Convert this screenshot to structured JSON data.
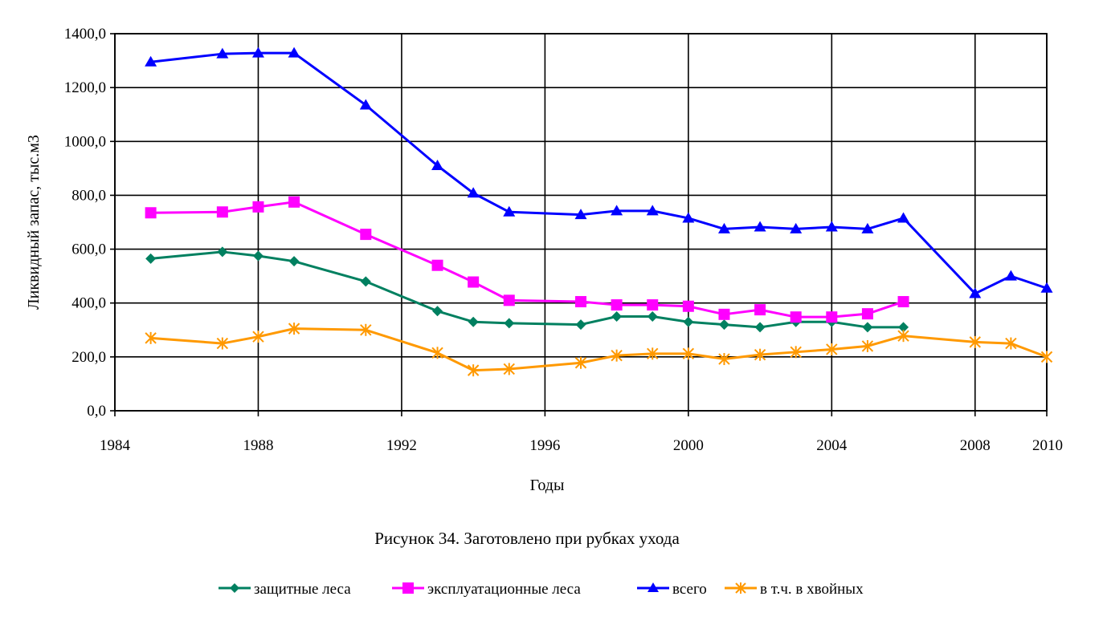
{
  "chart_data": {
    "type": "line",
    "xlabel": "Годы",
    "ylabel": "Ликвидный запас, тыс.м3",
    "caption": "Рисунок 34. Заготовлено при рубках ухода",
    "xlim": [
      1984,
      2010
    ],
    "ylim": [
      0,
      1400
    ],
    "x_ticks": [
      "1984",
      "1988",
      "1992",
      "1996",
      "2000",
      "2004",
      "2008",
      "2010"
    ],
    "y_ticks": [
      "0,0",
      "200,0",
      "400,0",
      "600,0",
      "800,0",
      "1000,0",
      "1200,0",
      "1400,0"
    ],
    "grid": true,
    "legend_position": "bottom",
    "series": [
      {
        "name": "защитные леса",
        "color": "#008060",
        "marker": "diamond",
        "x": [
          1985,
          1987,
          1988,
          1989,
          1991,
          1993,
          1994,
          1995,
          1997,
          1998,
          1999,
          2000,
          2001,
          2002,
          2003,
          2004,
          2005,
          2006
        ],
        "y": [
          565,
          590,
          575,
          555,
          480,
          370,
          330,
          325,
          320,
          350,
          350,
          330,
          320,
          310,
          330,
          330,
          310,
          310
        ]
      },
      {
        "name": "эксплуатационные леса",
        "color": "#ff00ff",
        "marker": "square",
        "x": [
          1985,
          1987,
          1988,
          1989,
          1991,
          1993,
          1994,
          1995,
          1997,
          1998,
          1999,
          2000,
          2001,
          2002,
          2003,
          2004,
          2005,
          2006
        ],
        "y": [
          735,
          738,
          757,
          775,
          655,
          540,
          478,
          410,
          405,
          393,
          393,
          388,
          358,
          375,
          348,
          348,
          360,
          405
        ]
      },
      {
        "name": "всего",
        "color": "#0000ff",
        "marker": "triangle",
        "x": [
          1985,
          1987,
          1988,
          1989,
          1991,
          1993,
          1994,
          1995,
          1997,
          1998,
          1999,
          2000,
          2001,
          2002,
          2003,
          2004,
          2005,
          2006,
          2008,
          2009,
          2010
        ],
        "y": [
          1295,
          1325,
          1328,
          1328,
          1135,
          910,
          808,
          738,
          728,
          742,
          742,
          715,
          675,
          682,
          675,
          682,
          675,
          715,
          435,
          500,
          455
        ]
      },
      {
        "name": "в т.ч. в хвойных",
        "color": "#ff9900",
        "marker": "star",
        "x": [
          1985,
          1987,
          1988,
          1989,
          1991,
          1993,
          1994,
          1995,
          1997,
          1998,
          1999,
          2000,
          2001,
          2002,
          2003,
          2004,
          2005,
          2006,
          2008,
          2009,
          2010
        ],
        "y": [
          270,
          250,
          275,
          305,
          300,
          215,
          150,
          155,
          178,
          205,
          212,
          212,
          192,
          208,
          218,
          228,
          240,
          278,
          255,
          250,
          200
        ]
      }
    ]
  }
}
